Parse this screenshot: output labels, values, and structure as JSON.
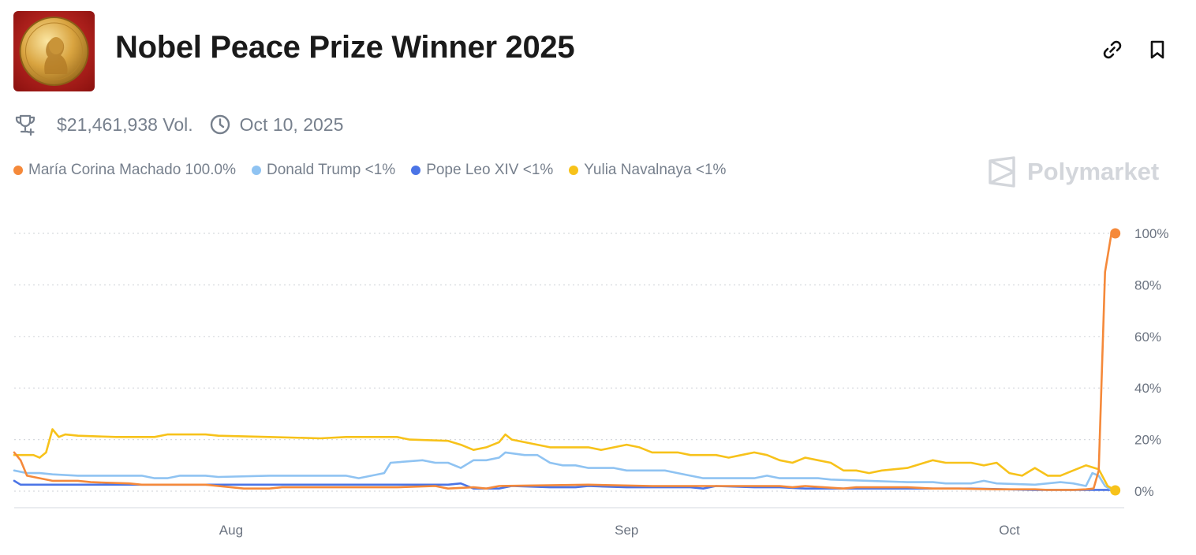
{
  "market": {
    "title": "Nobel Peace Prize Winner 2025",
    "volume": "$21,461,938 Vol.",
    "end_date": "Oct 10, 2025",
    "image_icon": "nobel-medal-icon"
  },
  "actions": {
    "link_icon": "link-icon",
    "bookmark_icon": "bookmark-icon"
  },
  "watermark": {
    "text": "Polymarket"
  },
  "legend": [
    {
      "name": "María Corina Machado",
      "value": "100.0%",
      "color": "#f5893a"
    },
    {
      "name": "Donald Trump",
      "value": "<1%",
      "color": "#8fc3f2"
    },
    {
      "name": "Pope Leo XIV",
      "value": "<1%",
      "color": "#4b74e6"
    },
    {
      "name": "Yulia Navalnaya",
      "value": "<1%",
      "color": "#f7c21a"
    }
  ],
  "chart_data": {
    "type": "line",
    "x_tick_labels": [
      "Aug",
      "Sep",
      "Oct"
    ],
    "y_tick_labels": [
      "100%",
      "80%",
      "60%",
      "40%",
      "20%",
      "0%"
    ],
    "ylim": [
      0,
      100
    ],
    "x_unit": "days since Jul 15, 2025",
    "xlim": [
      0,
      87
    ],
    "x_ticks": [
      17,
      48,
      78
    ],
    "grid": true,
    "series": [
      {
        "name": "María Corina Machado",
        "color": "#f5893a",
        "points": [
          [
            0,
            15
          ],
          [
            0.5,
            12
          ],
          [
            1,
            6
          ],
          [
            2,
            5
          ],
          [
            3,
            4
          ],
          [
            5,
            4
          ],
          [
            6,
            3.5
          ],
          [
            9,
            3
          ],
          [
            10,
            2.5
          ],
          [
            15,
            2.5
          ],
          [
            16,
            2
          ],
          [
            18,
            1
          ],
          [
            20,
            1
          ],
          [
            21,
            1.5
          ],
          [
            30,
            1.5
          ],
          [
            33,
            2
          ],
          [
            34,
            1
          ],
          [
            36,
            1.5
          ],
          [
            37,
            1
          ],
          [
            38,
            2
          ],
          [
            45,
            2.5
          ],
          [
            50,
            2
          ],
          [
            55,
            2
          ],
          [
            60,
            2
          ],
          [
            61,
            1.5
          ],
          [
            62,
            2
          ],
          [
            65,
            1
          ],
          [
            66,
            1.5
          ],
          [
            70,
            1.5
          ],
          [
            72,
            1
          ],
          [
            74,
            1
          ],
          [
            77,
            0.7
          ],
          [
            80,
            0.7
          ],
          [
            81,
            0.5
          ],
          [
            83,
            0.5
          ],
          [
            84,
            0.7
          ],
          [
            84.6,
            1
          ],
          [
            85,
            8
          ],
          [
            85.5,
            85
          ],
          [
            86,
            100
          ],
          [
            86.3,
            100
          ]
        ]
      },
      {
        "name": "Donald Trump",
        "color": "#8fc3f2",
        "points": [
          [
            0,
            8
          ],
          [
            1,
            7
          ],
          [
            2,
            7
          ],
          [
            3,
            6.5
          ],
          [
            5,
            6
          ],
          [
            8,
            6
          ],
          [
            10,
            6
          ],
          [
            11,
            5
          ],
          [
            12,
            5
          ],
          [
            13,
            6
          ],
          [
            15,
            6
          ],
          [
            16,
            5.5
          ],
          [
            20,
            6
          ],
          [
            26,
            6
          ],
          [
            27,
            5
          ],
          [
            28,
            6
          ],
          [
            29,
            7
          ],
          [
            29.5,
            11
          ],
          [
            32,
            12
          ],
          [
            33,
            11
          ],
          [
            34,
            11
          ],
          [
            35,
            9
          ],
          [
            36,
            12
          ],
          [
            37,
            12
          ],
          [
            38,
            13
          ],
          [
            38.5,
            15
          ],
          [
            40,
            14
          ],
          [
            41,
            14
          ],
          [
            42,
            11
          ],
          [
            43,
            10
          ],
          [
            44,
            10
          ],
          [
            45,
            9
          ],
          [
            47,
            9
          ],
          [
            48,
            8
          ],
          [
            51,
            8
          ],
          [
            52,
            7
          ],
          [
            53,
            6
          ],
          [
            54,
            5
          ],
          [
            58,
            5
          ],
          [
            59,
            6
          ],
          [
            60,
            5
          ],
          [
            63,
            5
          ],
          [
            64,
            4.5
          ],
          [
            67,
            4
          ],
          [
            70,
            3.5
          ],
          [
            72,
            3.5
          ],
          [
            73,
            3
          ],
          [
            75,
            3
          ],
          [
            76,
            4
          ],
          [
            77,
            3
          ],
          [
            80,
            2.5
          ],
          [
            81,
            3
          ],
          [
            82,
            3.5
          ],
          [
            83,
            3
          ],
          [
            84,
            2
          ],
          [
            84.5,
            7
          ],
          [
            85,
            6
          ],
          [
            85.5,
            2
          ],
          [
            86,
            0.5
          ],
          [
            86.3,
            0.5
          ]
        ]
      },
      {
        "name": "Pope Leo XIV",
        "color": "#4b74e6",
        "points": [
          [
            0,
            4
          ],
          [
            0.5,
            2.5
          ],
          [
            5,
            2.5
          ],
          [
            10,
            2.5
          ],
          [
            20,
            2.5
          ],
          [
            30,
            2.5
          ],
          [
            34,
            2.5
          ],
          [
            35,
            3
          ],
          [
            36,
            1
          ],
          [
            38,
            1
          ],
          [
            39,
            2
          ],
          [
            42,
            1.5
          ],
          [
            44,
            1.5
          ],
          [
            45,
            2
          ],
          [
            48,
            1.5
          ],
          [
            50,
            1.5
          ],
          [
            53,
            1.5
          ],
          [
            54,
            1
          ],
          [
            55,
            2
          ],
          [
            58,
            1.5
          ],
          [
            60,
            1.5
          ],
          [
            62,
            1
          ],
          [
            70,
            1
          ],
          [
            75,
            1
          ],
          [
            80,
            0.5
          ],
          [
            86.3,
            0.5
          ]
        ]
      },
      {
        "name": "Yulia Navalnaya",
        "color": "#f7c21a",
        "points": [
          [
            0,
            14
          ],
          [
            1.5,
            14
          ],
          [
            2,
            13
          ],
          [
            2.5,
            15
          ],
          [
            3,
            24
          ],
          [
            3.5,
            21
          ],
          [
            4,
            22
          ],
          [
            5,
            21.5
          ],
          [
            8,
            21
          ],
          [
            11,
            21
          ],
          [
            12,
            22
          ],
          [
            14,
            22
          ],
          [
            15,
            22
          ],
          [
            16,
            21.5
          ],
          [
            20,
            21
          ],
          [
            24,
            20.5
          ],
          [
            26,
            21
          ],
          [
            30,
            21
          ],
          [
            31,
            20
          ],
          [
            34,
            19.5
          ],
          [
            35,
            18
          ],
          [
            36,
            16
          ],
          [
            37,
            17
          ],
          [
            38,
            19
          ],
          [
            38.5,
            22
          ],
          [
            39,
            20
          ],
          [
            40,
            19
          ],
          [
            41,
            18
          ],
          [
            42,
            17
          ],
          [
            45,
            17
          ],
          [
            46,
            16
          ],
          [
            48,
            18
          ],
          [
            49,
            17
          ],
          [
            50,
            15
          ],
          [
            52,
            15
          ],
          [
            53,
            14
          ],
          [
            55,
            14
          ],
          [
            56,
            13
          ],
          [
            57,
            14
          ],
          [
            58,
            15
          ],
          [
            59,
            14
          ],
          [
            60,
            12
          ],
          [
            61,
            11
          ],
          [
            62,
            13
          ],
          [
            63,
            12
          ],
          [
            64,
            11
          ],
          [
            65,
            8
          ],
          [
            66,
            8
          ],
          [
            67,
            7
          ],
          [
            68,
            8
          ],
          [
            70,
            9
          ],
          [
            72,
            12
          ],
          [
            73,
            11
          ],
          [
            75,
            11
          ],
          [
            76,
            10
          ],
          [
            77,
            11
          ],
          [
            78,
            7
          ],
          [
            79,
            6
          ],
          [
            80,
            9
          ],
          [
            81,
            6
          ],
          [
            82,
            6
          ],
          [
            83,
            8
          ],
          [
            84,
            10
          ],
          [
            85,
            8.5
          ],
          [
            85.7,
            2
          ],
          [
            86.3,
            0.3
          ]
        ]
      }
    ]
  }
}
